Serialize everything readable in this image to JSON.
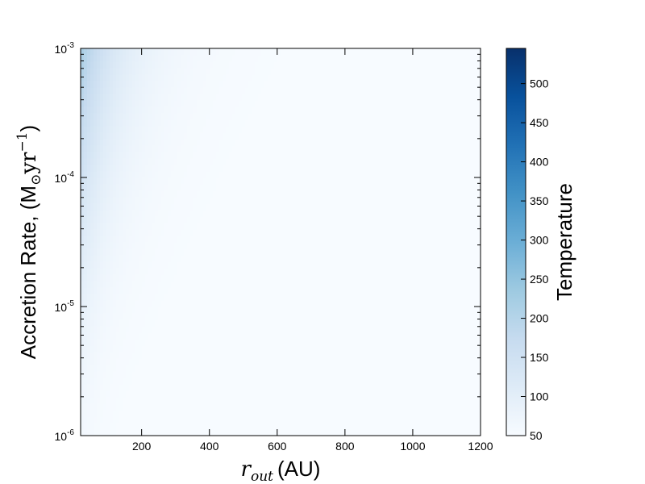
{
  "chart_data": {
    "type": "heatmap",
    "title": "",
    "xlabel": {
      "symbol": "r",
      "subscript": "out",
      "unit": "(AU)"
    },
    "ylabel": {
      "text": "Accretion Rate, (M",
      "sun_subscript": "⊙",
      "middle": "yr",
      "exponent": "−1",
      "close": ")"
    },
    "x_range": [
      20,
      1200
    ],
    "y_range": [
      1e-06,
      0.001
    ],
    "y_scale": "log",
    "x_ticks": [
      {
        "value": 200,
        "label": "200"
      },
      {
        "value": 400,
        "label": "400"
      },
      {
        "value": 600,
        "label": "600"
      },
      {
        "value": 800,
        "label": "800"
      },
      {
        "value": 1000,
        "label": "1000"
      },
      {
        "value": 1200,
        "label": "1200"
      }
    ],
    "y_ticks": [
      {
        "exp": -6,
        "base": "10",
        "sup": "-6"
      },
      {
        "exp": -5,
        "base": "10",
        "sup": "-5"
      },
      {
        "exp": -4,
        "base": "10",
        "sup": "-4"
      },
      {
        "exp": -3,
        "base": "10",
        "sup": "-3"
      }
    ],
    "colormap": "Blues",
    "colorbar": {
      "label": "Temperature",
      "range": [
        50,
        545
      ],
      "ticks": [
        50,
        100,
        150,
        200,
        250,
        300,
        350,
        400,
        450,
        500
      ]
    },
    "field_samples": [
      {
        "r_out": 20,
        "accretion_rate": 0.001,
        "temperature": 225
      },
      {
        "r_out": 50,
        "accretion_rate": 0.001,
        "temperature": 150
      },
      {
        "r_out": 100,
        "accretion_rate": 0.001,
        "temperature": 110
      },
      {
        "r_out": 200,
        "accretion_rate": 0.001,
        "temperature": 75
      },
      {
        "r_out": 20,
        "accretion_rate": 0.0001,
        "temperature": 170
      },
      {
        "r_out": 100,
        "accretion_rate": 0.0001,
        "temperature": 75
      },
      {
        "r_out": 20,
        "accretion_rate": 1e-05,
        "temperature": 110
      },
      {
        "r_out": 20,
        "accretion_rate": 1e-06,
        "temperature": 65
      },
      {
        "r_out": 600,
        "accretion_rate": 1e-05,
        "temperature": 52
      },
      {
        "r_out": 1200,
        "accretion_rate": 1e-06,
        "temperature": 50
      }
    ]
  }
}
